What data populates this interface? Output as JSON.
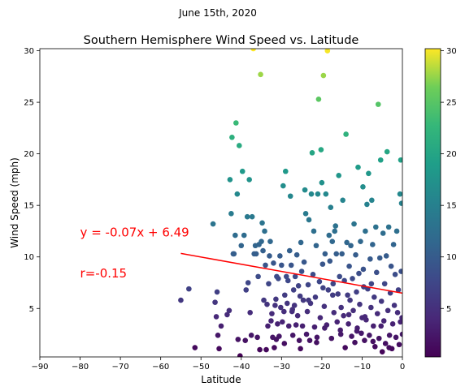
{
  "suptitle": "June 15th, 2020",
  "chart_data": {
    "type": "scatter",
    "title": "Southern Hemisphere Wind Speed vs. Latitude",
    "xlabel": "Latitude",
    "ylabel": "Wind Speed (mph)",
    "xlim": [
      -90,
      0
    ],
    "ylim": [
      0.3,
      30.2
    ],
    "xticks": [
      -90,
      -80,
      -70,
      -60,
      -50,
      -40,
      -30,
      -20,
      -10,
      0
    ],
    "yticks": [
      5,
      10,
      15,
      20,
      25,
      30
    ],
    "colorbar_ticks": [
      5,
      10,
      15,
      20,
      25,
      30
    ],
    "colorbar_range": [
      0.3,
      30.2
    ],
    "colormap": "viridis",
    "grid": false,
    "regression": {
      "slope": -0.07,
      "intercept": 6.49,
      "x_range": [
        -55,
        0
      ],
      "color": "#ff0000"
    },
    "annotations": [
      {
        "text": "y = -0.07x + 6.49",
        "x": -80,
        "y": 12
      },
      {
        "text": "r=-0.15",
        "x": -80,
        "y": 8
      }
    ],
    "points": [
      [
        -55,
        5.8
      ],
      [
        -53,
        6.9
      ],
      [
        -51.5,
        1.2
      ],
      [
        -47,
        13.2
      ],
      [
        -46.5,
        5.6
      ],
      [
        -46.2,
        4.2
      ],
      [
        -46,
        6.6
      ],
      [
        -45.8,
        2.4
      ],
      [
        -45.5,
        1.1
      ],
      [
        -45,
        3.3
      ],
      [
        -43.5,
        4.4
      ],
      [
        -43,
        4.8
      ],
      [
        -42.8,
        17.5
      ],
      [
        -42.5,
        14.2
      ],
      [
        -42.3,
        21.6
      ],
      [
        -42,
        10.3
      ],
      [
        -41.8,
        10.3
      ],
      [
        -41.5,
        12.1
      ],
      [
        -41.3,
        23
      ],
      [
        -41,
        16.1
      ],
      [
        -40.8,
        2
      ],
      [
        -40.5,
        20.8
      ],
      [
        -40.3,
        0.4
      ],
      [
        -40,
        11.1
      ],
      [
        -39.7,
        18.3
      ],
      [
        -39.3,
        12.1
      ],
      [
        -39,
        1.9
      ],
      [
        -38.8,
        6.8
      ],
      [
        -38.5,
        13.9
      ],
      [
        -38.3,
        7.5
      ],
      [
        -38,
        17.5
      ],
      [
        -37.8,
        4.6
      ],
      [
        -37.5,
        2.4
      ],
      [
        -37.3,
        13.9
      ],
      [
        -37,
        30.2
      ],
      [
        -36.8,
        10.3
      ],
      [
        -36.5,
        11.1
      ],
      [
        -36.3,
        10.3
      ],
      [
        -36,
        2.2
      ],
      [
        -35.8,
        8.1
      ],
      [
        -35.6,
        11.2
      ],
      [
        -35.4,
        1
      ],
      [
        -35.2,
        27.7
      ],
      [
        -35,
        11.5
      ],
      [
        -34.8,
        13.3
      ],
      [
        -34.6,
        10.6
      ],
      [
        -34.4,
        5.8
      ],
      [
        -34.2,
        12.5
      ],
      [
        -34,
        9.2
      ],
      [
        -33.8,
        1
      ],
      [
        -33.6,
        5.4
      ],
      [
        -33.4,
        3.3
      ],
      [
        -33.2,
        7.4
      ],
      [
        -33,
        10.1
      ],
      [
        -32.8,
        11.5
      ],
      [
        -32.6,
        3.8
      ],
      [
        -32.4,
        4.5
      ],
      [
        -32.2,
        2.2
      ],
      [
        -32,
        9.4
      ],
      [
        -31.8,
        1.2
      ],
      [
        -31.6,
        5.3
      ],
      [
        -31.4,
        5.9
      ],
      [
        -31.2,
        8.1
      ],
      [
        -31,
        3.5
      ],
      [
        -30.8,
        7.9
      ],
      [
        -30.6,
        2.3
      ],
      [
        -30.4,
        10.1
      ],
      [
        -30.2,
        5.1
      ],
      [
        -30,
        9.2
      ],
      [
        -29.8,
        3.7
      ],
      [
        -29.6,
        16.9
      ],
      [
        -29.4,
        4.7
      ],
      [
        -29.2,
        6.3
      ],
      [
        -29,
        18.3
      ],
      [
        -28.8,
        8.1
      ],
      [
        -28.6,
        5.5
      ],
      [
        -28.4,
        7.7
      ],
      [
        -28.2,
        3.3
      ],
      [
        -28,
        10.6
      ],
      [
        -27.8,
        15.9
      ],
      [
        -27.6,
        9.2
      ],
      [
        -27.4,
        4.7
      ],
      [
        -27.2,
        2.4
      ],
      [
        -27,
        6.8
      ],
      [
        -26.8,
        5.3
      ],
      [
        -26.6,
        8.1
      ],
      [
        -26.4,
        3.4
      ],
      [
        -26.2,
        10.2
      ],
      [
        -26,
        4.3
      ],
      [
        -25.8,
        7.2
      ],
      [
        -25.6,
        1.9
      ],
      [
        -25.4,
        6.2
      ],
      [
        -25.2,
        11.4
      ],
      [
        -25,
        8.6
      ],
      [
        -24.8,
        3.3
      ],
      [
        -24.6,
        5.8
      ],
      [
        -24.4,
        9.5
      ],
      [
        -24.2,
        16.5
      ],
      [
        -24,
        14.2
      ],
      [
        -23.8,
        2.5
      ],
      [
        -23.6,
        4.7
      ],
      [
        -23.4,
        7.3
      ],
      [
        -23.2,
        13.6
      ],
      [
        -23,
        1.9
      ],
      [
        -22.8,
        5.5
      ],
      [
        -22.6,
        16.1
      ],
      [
        -22.4,
        20.1
      ],
      [
        -22.2,
        8.3
      ],
      [
        -22,
        12.5
      ],
      [
        -21.8,
        3.2
      ],
      [
        -21.6,
        6.1
      ],
      [
        -21.4,
        11.1
      ],
      [
        -21.2,
        2.2
      ],
      [
        -21,
        16.1
      ],
      [
        -20.8,
        25.3
      ],
      [
        -20.6,
        7.6
      ],
      [
        -20.4,
        4.1
      ],
      [
        -20.2,
        20.4
      ],
      [
        -20,
        17.2
      ],
      [
        -19.8,
        9.3
      ],
      [
        -19.6,
        27.6
      ],
      [
        -19.4,
        5.2
      ],
      [
        -19.2,
        10.3
      ],
      [
        -19,
        16.1
      ],
      [
        -18.8,
        3.4
      ],
      [
        -18.6,
        30
      ],
      [
        -18.4,
        6.8
      ],
      [
        -18.2,
        12.1
      ],
      [
        -18,
        9.6
      ],
      [
        -17.8,
        14.8
      ],
      [
        -17.6,
        2.1
      ],
      [
        -17.4,
        11.5
      ],
      [
        -17.2,
        7.4
      ],
      [
        -17,
        4.6
      ],
      [
        -16.8,
        12.5
      ],
      [
        -16.6,
        13
      ],
      [
        -16.4,
        10.3
      ],
      [
        -16.2,
        3.7
      ],
      [
        -16,
        6.4
      ],
      [
        -15.8,
        17.9
      ],
      [
        -15.6,
        8.1
      ],
      [
        -15.4,
        2.9
      ],
      [
        -15.2,
        5.1
      ],
      [
        -15,
        10.3
      ],
      [
        -14.8,
        15.5
      ],
      [
        -14.6,
        4.3
      ],
      [
        -14.4,
        7.7
      ],
      [
        -14.2,
        1.2
      ],
      [
        -14,
        21.9
      ],
      [
        -13.8,
        11.4
      ],
      [
        -13.6,
        6.3
      ],
      [
        -13.4,
        3.5
      ],
      [
        -13.2,
        9.1
      ],
      [
        -13,
        5.8
      ],
      [
        -12.8,
        11.1
      ],
      [
        -12.6,
        2.3
      ],
      [
        -12.4,
        7.9
      ],
      [
        -12.2,
        4.8
      ],
      [
        -12,
        13.2
      ],
      [
        -11.8,
        1.7
      ],
      [
        -11.6,
        10.2
      ],
      [
        -11.4,
        6.6
      ],
      [
        -11.2,
        3.1
      ],
      [
        -11,
        18.7
      ],
      [
        -10.8,
        8.4
      ],
      [
        -10.6,
        5.4
      ],
      [
        -10.4,
        11.5
      ],
      [
        -10.2,
        2.6
      ],
      [
        -10,
        4.1
      ],
      [
        -9.8,
        16.8
      ],
      [
        -9.6,
        7.1
      ],
      [
        -9.4,
        1.9
      ],
      [
        -9.2,
        12.5
      ],
      [
        -9,
        3.9
      ],
      [
        -8.8,
        15.1
      ],
      [
        -8.6,
        6.9
      ],
      [
        -8.4,
        18.1
      ],
      [
        -8.2,
        2.4
      ],
      [
        -8,
        9.8
      ],
      [
        -7.8,
        5.1
      ],
      [
        -7.6,
        15.5
      ],
      [
        -7.4,
        11.2
      ],
      [
        -7.2,
        3.3
      ],
      [
        -7,
        6.1
      ],
      [
        -6.8,
        1.3
      ],
      [
        -6.6,
        12.9
      ],
      [
        -6.4,
        8.5
      ],
      [
        -6.2,
        4.5
      ],
      [
        -6,
        24.8
      ],
      [
        -5.8,
        2.1
      ],
      [
        -5.6,
        9.9
      ],
      [
        -5.4,
        19.4
      ],
      [
        -5.2,
        5.7
      ],
      [
        -5,
        0.8
      ],
      [
        -4.8,
        12.3
      ],
      [
        -4.6,
        3.8
      ],
      [
        -4.4,
        7.4
      ],
      [
        -4.2,
        1.6
      ],
      [
        -4,
        10.1
      ],
      [
        -3.8,
        20.2
      ],
      [
        -3.6,
        4.8
      ],
      [
        -3.4,
        12.9
      ],
      [
        -3.2,
        2.4
      ],
      [
        -3,
        6.5
      ],
      [
        -2.8,
        9.1
      ],
      [
        -2.6,
        1.1
      ],
      [
        -2.4,
        3.5
      ],
      [
        -2.2,
        11.2
      ],
      [
        -2,
        5.3
      ],
      [
        -1.8,
        8.3
      ],
      [
        -1.6,
        2.2
      ],
      [
        -1.4,
        12.5
      ],
      [
        -1.2,
        4.6
      ],
      [
        -1,
        6.8
      ],
      [
        -0.8,
        1.5
      ],
      [
        -0.6,
        16.1
      ],
      [
        -0.5,
        3.7
      ],
      [
        -0.4,
        19.4
      ],
      [
        -0.3,
        8.6
      ],
      [
        -0.2,
        15.2
      ],
      [
        -0.1,
        4.1
      ],
      [
        0,
        2.5
      ],
      [
        -27.3,
        4.9
      ],
      [
        -25.3,
        1.1
      ],
      [
        -23.3,
        5.8
      ],
      [
        -21.3,
        1.7
      ],
      [
        -19.3,
        3.1
      ],
      [
        -17.3,
        6.3
      ],
      [
        -15.3,
        2.5
      ],
      [
        -13.3,
        4.4
      ],
      [
        -11.3,
        2.8
      ],
      [
        -9.3,
        4.2
      ],
      [
        -7.3,
        1.8
      ],
      [
        -5.3,
        3.3
      ],
      [
        -3.3,
        1.2
      ],
      [
        -31.3,
        2
      ],
      [
        -29.3,
        1.6
      ],
      [
        -19.7,
        7
      ],
      [
        -9.7,
        8.8
      ],
      [
        -7.7,
        7.4
      ]
    ]
  }
}
